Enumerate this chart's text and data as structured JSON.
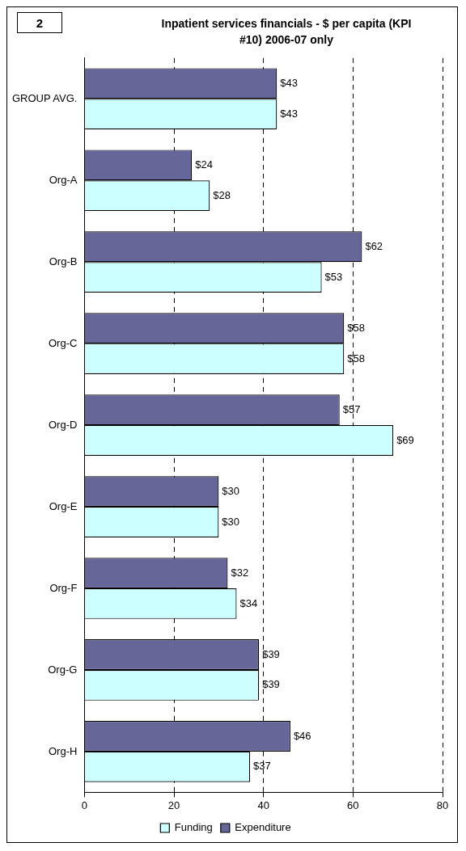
{
  "chart_data": {
    "type": "bar",
    "orientation": "horizontal",
    "title": "Inpatient services financials - $ per capita (KPI #10) 2006-07 only",
    "annotations": [
      "2"
    ],
    "categories": [
      "GROUP AVG.",
      "Org-A",
      "Org-B",
      "Org-C",
      "Org-D",
      "Org-E",
      "Org-F",
      "Org-G",
      "Org-H"
    ],
    "series": [
      {
        "name": "Expenditure",
        "color": "#666699",
        "values": [
          43,
          24,
          62,
          58,
          57,
          30,
          32,
          39,
          46
        ],
        "value_labels": [
          "$43",
          "$24",
          "$62",
          "$58",
          "$57",
          "$30",
          "$32",
          "$39",
          "$46"
        ]
      },
      {
        "name": "Funding",
        "color": "#ccffff",
        "values": [
          43,
          28,
          53,
          58,
          69,
          30,
          34,
          39,
          37
        ],
        "value_labels": [
          "$43",
          "$28",
          "$53",
          "$58",
          "$69",
          "$30",
          "$34",
          "$39",
          "$37"
        ]
      }
    ],
    "xlim": [
      0,
      80
    ],
    "xticks": [
      0,
      20,
      40,
      60,
      80
    ],
    "grid": "x",
    "legend": "bottom"
  }
}
